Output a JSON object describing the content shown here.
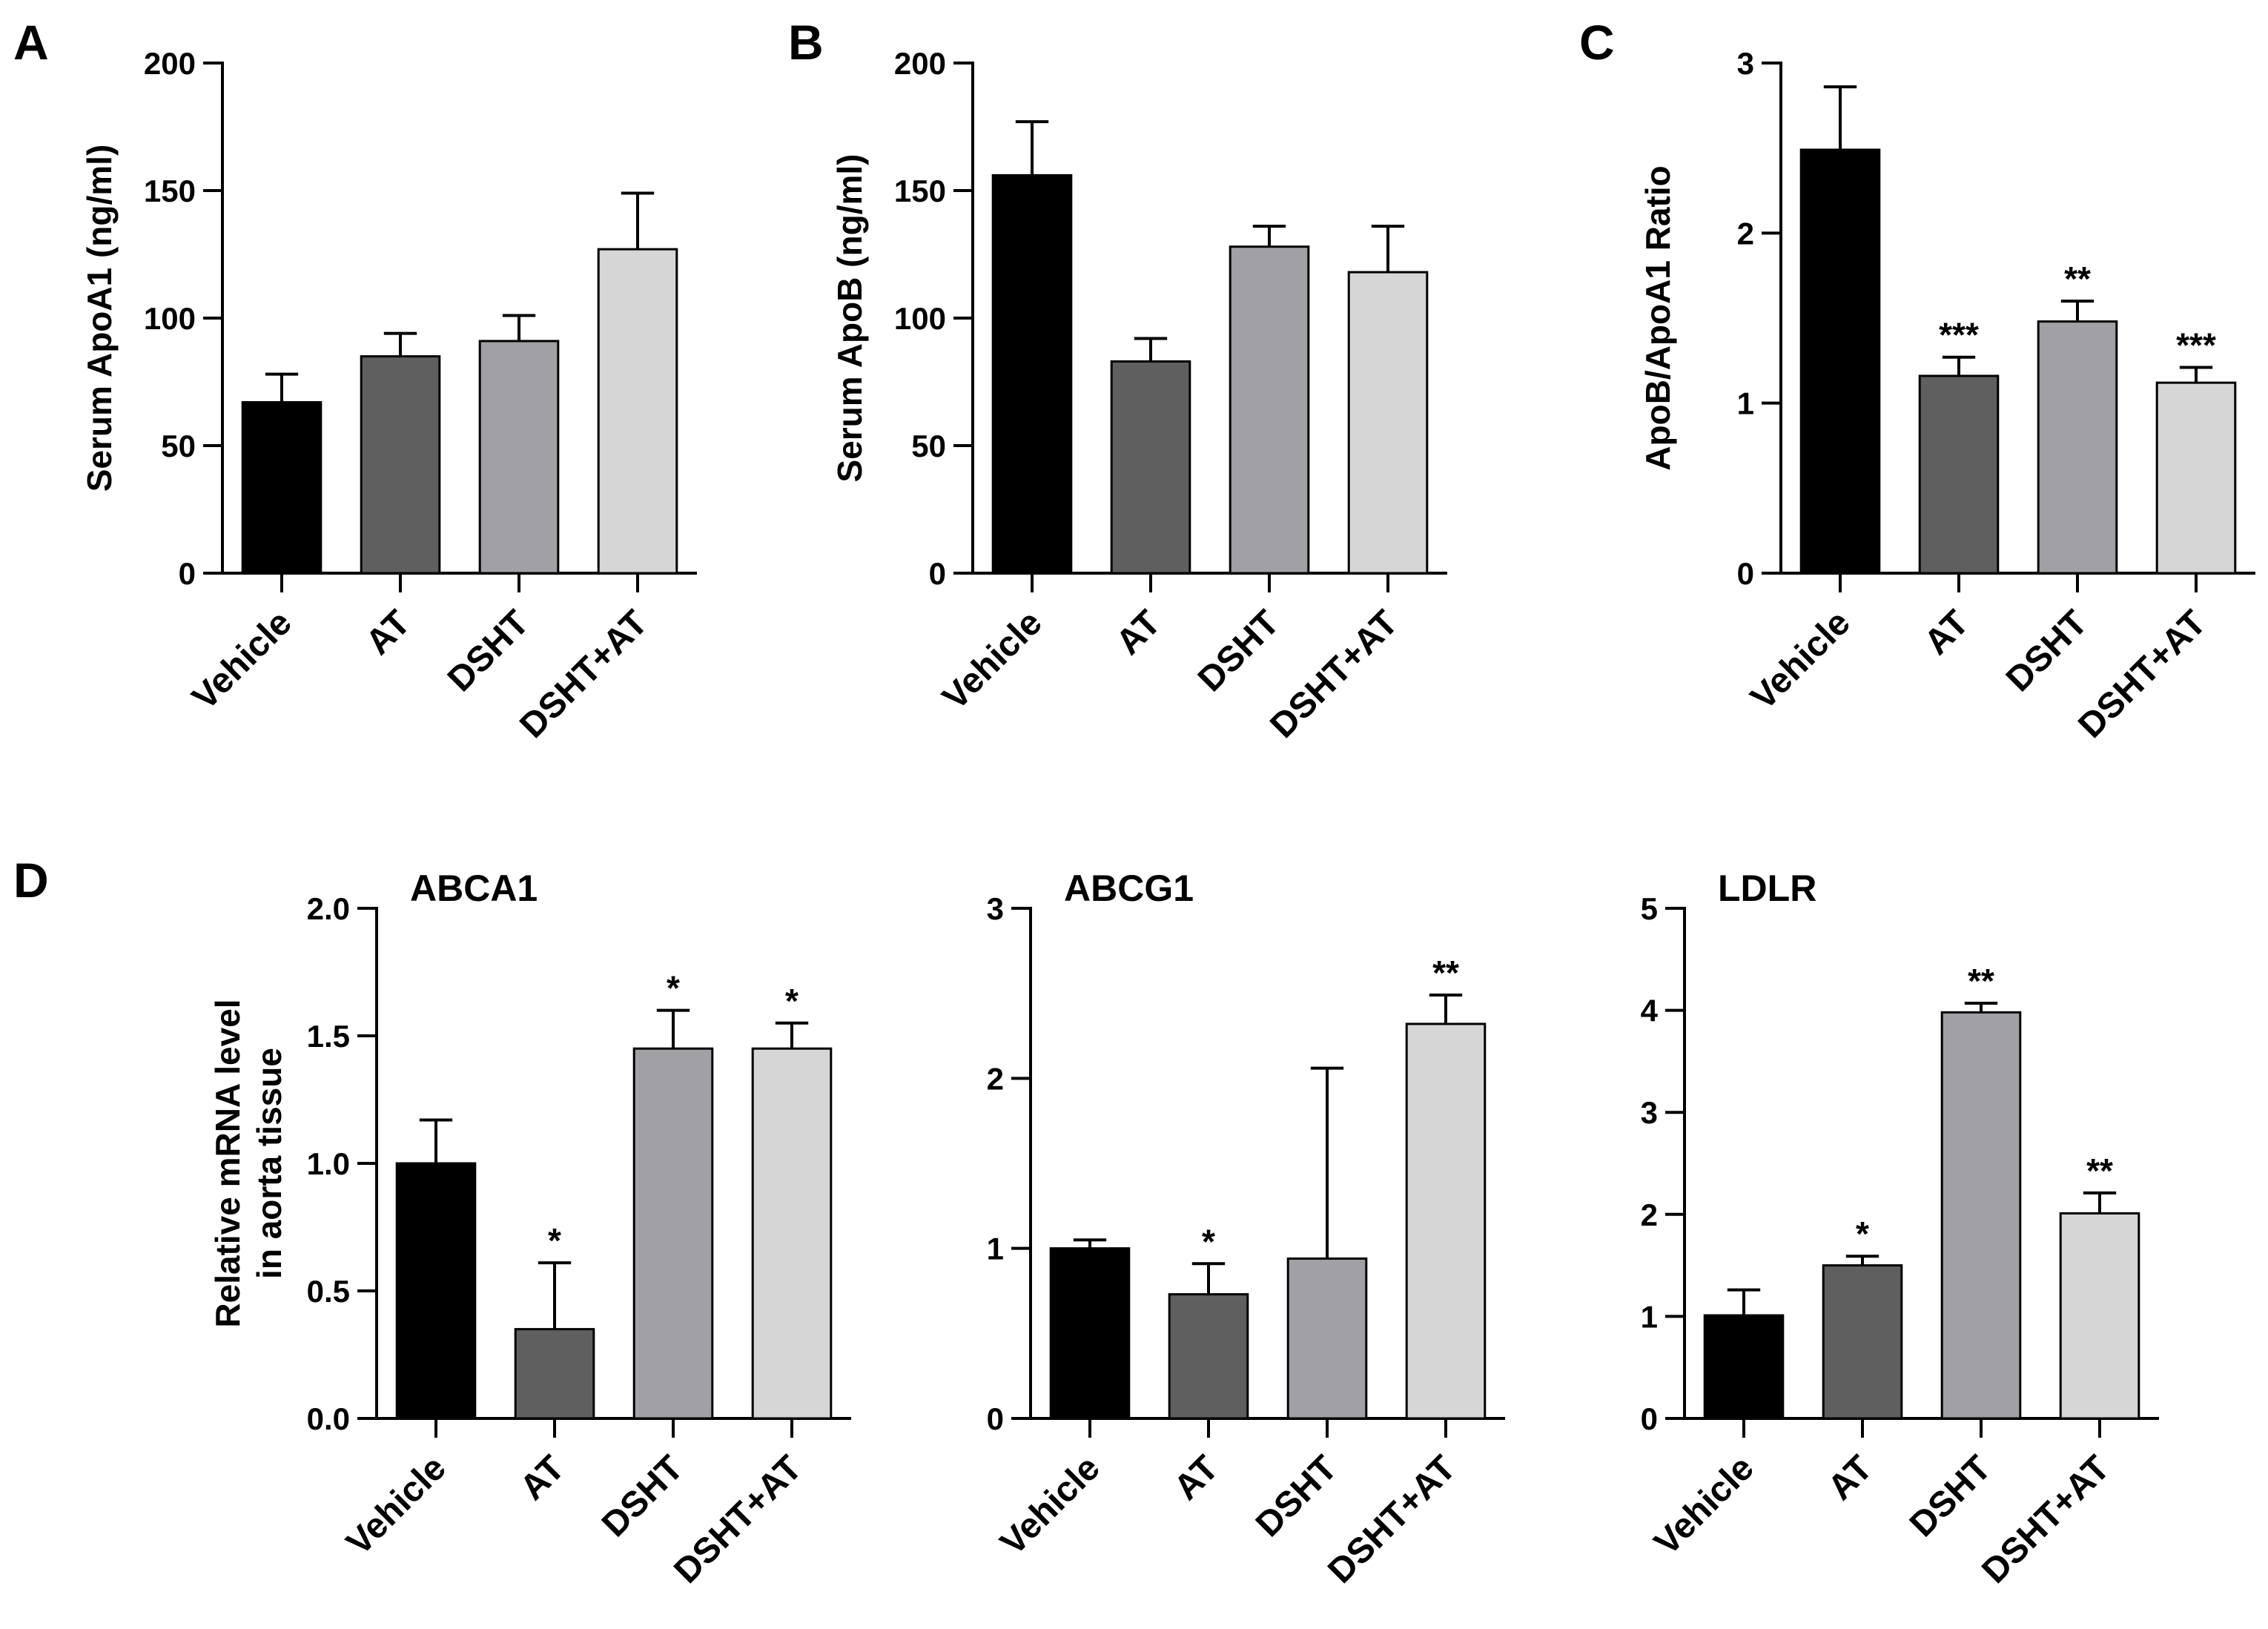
{
  "figure": {
    "panel_letters": [
      "A",
      "B",
      "C",
      "D"
    ],
    "colors": {
      "Vehicle": "#000000",
      "AT": "#5f5f5f",
      "DSHT": "#a1a1a5",
      "DSHT+AT": "#d6d6d6",
      "axis": "#000000"
    }
  },
  "chart_data": [
    {
      "id": "A",
      "type": "bar",
      "panel_letter": "A",
      "title": "",
      "xlabel": "",
      "ylabel": "Serum ApoA1 (ng/ml)",
      "categories": [
        "Vehicle",
        "AT",
        "DSHT",
        "DSHT+AT"
      ],
      "values": [
        67,
        85,
        91,
        127
      ],
      "errors": [
        11,
        9,
        10,
        22
      ],
      "significance": [
        "",
        "",
        "",
        ""
      ],
      "ylim": [
        0,
        200
      ],
      "yticks": [
        0,
        50,
        100,
        150,
        200
      ],
      "ytick_labels": [
        "0",
        "50",
        "100",
        "150",
        "200"
      ]
    },
    {
      "id": "B",
      "type": "bar",
      "panel_letter": "B",
      "title": "",
      "xlabel": "",
      "ylabel": "Serum ApoB (ng/ml)",
      "categories": [
        "Vehicle",
        "AT",
        "DSHT",
        "DSHT+AT"
      ],
      "values": [
        156,
        83,
        128,
        118
      ],
      "errors": [
        21,
        9,
        8,
        18
      ],
      "significance": [
        "",
        "",
        "",
        ""
      ],
      "ylim": [
        0,
        200
      ],
      "yticks": [
        0,
        50,
        100,
        150,
        200
      ],
      "ytick_labels": [
        "0",
        "50",
        "100",
        "150",
        "200"
      ]
    },
    {
      "id": "C",
      "type": "bar",
      "panel_letter": "C",
      "title": "",
      "xlabel": "",
      "ylabel": "ApoB/ApoA1 Ratio",
      "categories": [
        "Vehicle",
        "AT",
        "DSHT",
        "DSHT+AT"
      ],
      "values": [
        2.49,
        1.16,
        1.48,
        1.12
      ],
      "errors": [
        0.37,
        0.11,
        0.12,
        0.09
      ],
      "significance": [
        "",
        "***",
        "**",
        "***"
      ],
      "ylim": [
        0,
        3
      ],
      "yticks": [
        0,
        1,
        2,
        3
      ],
      "ytick_labels": [
        "0",
        "1",
        "2",
        "3"
      ]
    },
    {
      "id": "D1",
      "type": "bar",
      "panel_letter": "D",
      "title": "ABCA1",
      "xlabel": "",
      "ylabel": "Relative mRNA level\nin aorta tissue",
      "categories": [
        "Vehicle",
        "AT",
        "DSHT",
        "DSHT+AT"
      ],
      "values": [
        1.0,
        0.35,
        1.45,
        1.45
      ],
      "errors": [
        0.17,
        0.26,
        0.15,
        0.1
      ],
      "significance": [
        "",
        "*",
        "*",
        "*"
      ],
      "ylim": [
        0,
        2
      ],
      "yticks": [
        0,
        0.5,
        1,
        1.5,
        2
      ],
      "ytick_labels": [
        "0.0",
        "0.5",
        "1.0",
        "1.5",
        "2.0"
      ]
    },
    {
      "id": "D2",
      "type": "bar",
      "panel_letter": "",
      "title": "ABCG1",
      "xlabel": "",
      "ylabel": "",
      "categories": [
        "Vehicle",
        "AT",
        "DSHT",
        "DSHT+AT"
      ],
      "values": [
        1.0,
        0.73,
        0.94,
        2.32
      ],
      "errors": [
        0.05,
        0.18,
        1.12,
        0.17
      ],
      "significance": [
        "",
        "*",
        "",
        "**"
      ],
      "ylim": [
        0,
        3
      ],
      "yticks": [
        0,
        1,
        2,
        3
      ],
      "ytick_labels": [
        "0",
        "1",
        "2",
        "3"
      ]
    },
    {
      "id": "D3",
      "type": "bar",
      "panel_letter": "",
      "title": "LDLR",
      "xlabel": "",
      "ylabel": "",
      "categories": [
        "Vehicle",
        "AT",
        "DSHT",
        "DSHT+AT"
      ],
      "values": [
        1.01,
        1.5,
        3.98,
        2.01
      ],
      "errors": [
        0.25,
        0.09,
        0.09,
        0.2
      ],
      "significance": [
        "",
        "*",
        "**",
        "**"
      ],
      "ylim": [
        0,
        5
      ],
      "yticks": [
        0,
        1,
        2,
        3,
        4,
        5
      ],
      "ytick_labels": [
        "0",
        "1",
        "2",
        "3",
        "4",
        "5"
      ]
    }
  ]
}
